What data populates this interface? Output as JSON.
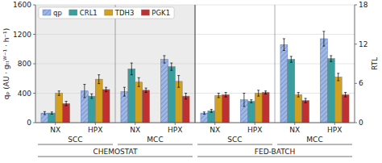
{
  "chart_data": {
    "type": "bar",
    "categories": [
      "NX",
      "HPX",
      "NX",
      "HPX",
      "NX",
      "HPX",
      "NX",
      "HPX"
    ],
    "group_labels": [
      [
        "SCC",
        "MCC",
        "SCC",
        "MCC"
      ],
      [
        "CHEMOSTAT",
        "FED-BATCH"
      ]
    ],
    "ylabel": "qₚ (AU · gₜₜᵂ⁻¹ · h⁻¹)",
    "y2label": "RTL",
    "ylim": [
      0,
      1600
    ],
    "yticks": [
      0,
      400,
      800,
      1200,
      1600
    ],
    "y2lim": [
      0,
      18
    ],
    "y2ticks": [
      0,
      6,
      12,
      18
    ],
    "grid": true,
    "legend": "upper left",
    "series": [
      {
        "name": "qp",
        "color": "#a0b8e0",
        "values": [
          130,
          430,
          420,
          860,
          130,
          310,
          1060,
          1140
        ],
        "errors": [
          20,
          90,
          60,
          50,
          15,
          90,
          80,
          100
        ]
      },
      {
        "name": "CRL1",
        "color": "#3a9e9e",
        "values": [
          130,
          360,
          730,
          760,
          160,
          290,
          860,
          870
        ],
        "errors": [
          15,
          30,
          80,
          50,
          20,
          20,
          40,
          40
        ]
      },
      {
        "name": "TDH3",
        "color": "#d4a020",
        "values": [
          400,
          590,
          550,
          560,
          370,
          400,
          380,
          620
        ],
        "errors": [
          30,
          60,
          60,
          80,
          30,
          40,
          30,
          50
        ]
      },
      {
        "name": "PGK1",
        "color": "#c03030",
        "values": [
          260,
          450,
          440,
          360,
          380,
          410,
          300,
          380
        ],
        "errors": [
          30,
          30,
          30,
          40,
          30,
          20,
          30,
          30
        ]
      }
    ]
  }
}
